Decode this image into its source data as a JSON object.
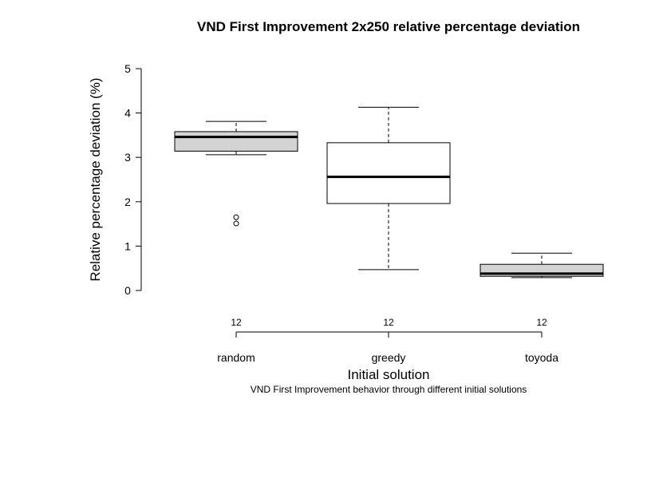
{
  "chart_data": {
    "type": "boxplot",
    "title": "VND First Improvement 2x250 relative percentage deviation",
    "ylabel": "Relative percentage deviation (%)",
    "xlabel": "Initial solution",
    "subtitle": "VND First Improvement behavior through different initial solutions",
    "ylim": [
      0,
      5
    ],
    "yticks": [
      "0",
      "1",
      "2",
      "3",
      "4",
      "5"
    ],
    "grid": false,
    "categories": [
      "random",
      "greedy",
      "toyoda"
    ],
    "counts": [
      "12",
      "12",
      "12"
    ],
    "boxes": [
      {
        "category": "random",
        "whisker_low": 3.06,
        "q1": 3.14,
        "median": 3.46,
        "q3": 3.58,
        "whisker_high": 3.81,
        "outliers": [
          1.51,
          1.65
        ],
        "fill": "#d3d3d3"
      },
      {
        "category": "greedy",
        "whisker_low": 0.47,
        "q1": 1.96,
        "median": 2.56,
        "q3": 3.33,
        "whisker_high": 4.13,
        "outliers": [],
        "fill": "#ffffff"
      },
      {
        "category": "toyoda",
        "whisker_low": 0.29,
        "q1": 0.32,
        "median": 0.38,
        "q3": 0.59,
        "whisker_high": 0.84,
        "outliers": [],
        "fill": "#d3d3d3"
      }
    ]
  }
}
